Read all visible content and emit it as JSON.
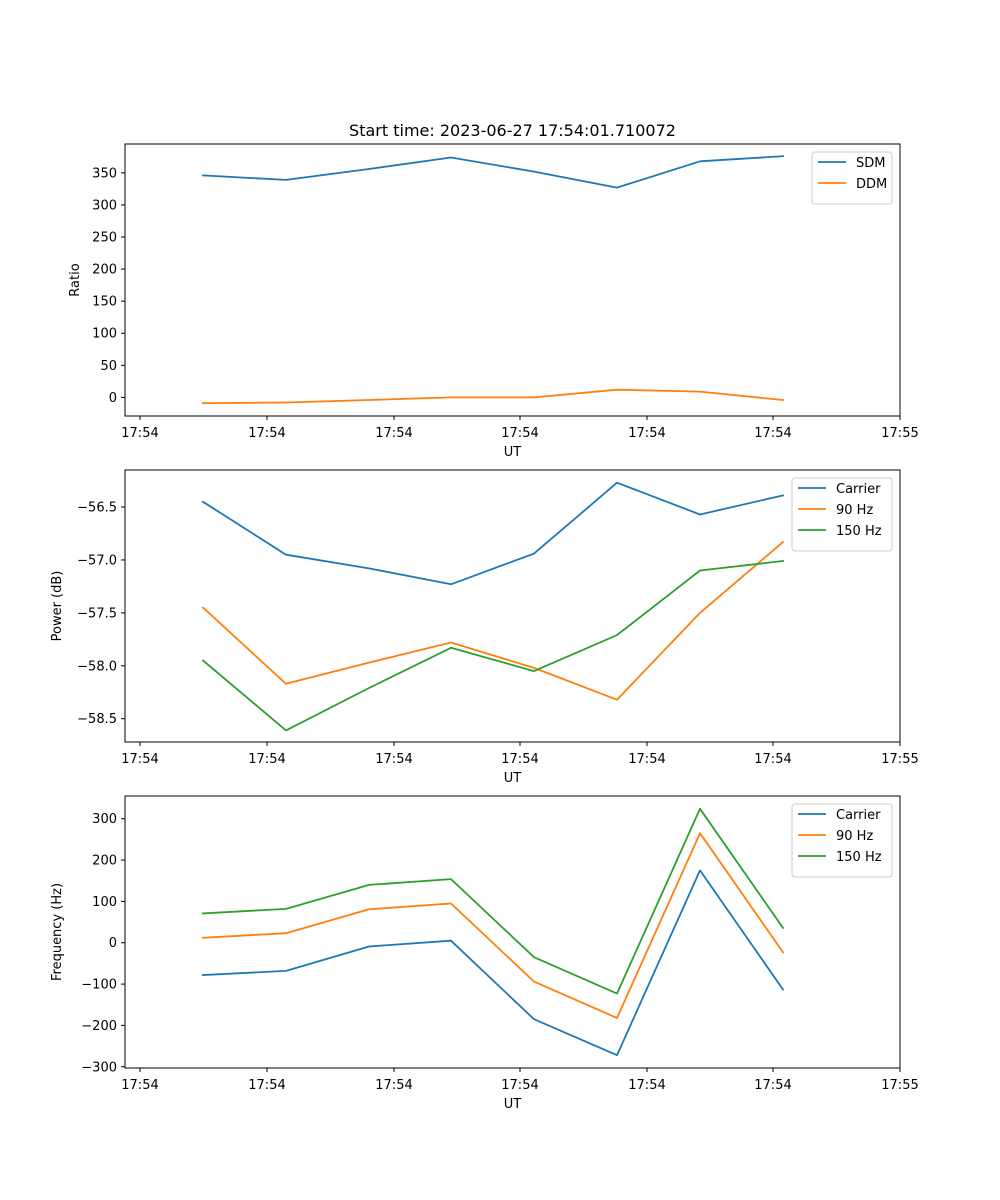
{
  "figure_title": "Start time: 2023-06-27 17:54:01.710072",
  "chart_data": [
    {
      "type": "line",
      "title": "Start time: 2023-06-27 17:54:01.710072",
      "xlabel": "UT",
      "ylabel": "Ratio",
      "x_tick_labels": [
        "17:54",
        "17:54",
        "17:54",
        "17:54",
        "17:54",
        "17:54",
        "17:55"
      ],
      "y_ticks": [
        0,
        50,
        100,
        150,
        200,
        250,
        300,
        350
      ],
      "ylim": [
        -29,
        395
      ],
      "x": [
        1,
        2,
        3,
        4,
        5,
        6,
        7,
        8
      ],
      "series": [
        {
          "name": "SDM",
          "color": "#1f77b4",
          "values": [
            346,
            339,
            356,
            374,
            352,
            327,
            368,
            376
          ]
        },
        {
          "name": "DDM",
          "color": "#ff7f0e",
          "values": [
            -9,
            -8,
            -4,
            0,
            0,
            12,
            9,
            -4
          ]
        }
      ],
      "legend": "top-right",
      "grid": false
    },
    {
      "type": "line",
      "title": "",
      "xlabel": "UT",
      "ylabel": "Power (dB)",
      "x_tick_labels": [
        "17:54",
        "17:54",
        "17:54",
        "17:54",
        "17:54",
        "17:54",
        "17:55"
      ],
      "y_ticks": [
        -58.5,
        -58.0,
        -57.5,
        -57.0,
        -56.5
      ],
      "y_tick_labels": [
        "−58.5",
        "−58.0",
        "−57.5",
        "−57.0",
        "−56.5"
      ],
      "ylim": [
        -58.72,
        -56.15
      ],
      "x": [
        1,
        2,
        3,
        4,
        5,
        6,
        7,
        8
      ],
      "series": [
        {
          "name": "Carrier",
          "color": "#1f77b4",
          "values": [
            -56.45,
            -56.95,
            -57.08,
            -57.23,
            -56.94,
            -56.27,
            -56.57,
            -56.39
          ]
        },
        {
          "name": "90 Hz",
          "color": "#ff7f0e",
          "values": [
            -57.45,
            -58.17,
            -57.97,
            -57.78,
            -58.02,
            -58.32,
            -57.5,
            -56.83
          ]
        },
        {
          "name": "150 Hz",
          "color": "#2ca02c",
          "values": [
            -57.95,
            -58.61,
            -58.21,
            -57.83,
            -58.05,
            -57.71,
            -57.1,
            -57.01
          ]
        }
      ],
      "legend": "top-right",
      "grid": false
    },
    {
      "type": "line",
      "title": "",
      "xlabel": "UT",
      "ylabel": "Frequency (Hz)",
      "x_tick_labels": [
        "17:54",
        "17:54",
        "17:54",
        "17:54",
        "17:54",
        "17:54",
        "17:55"
      ],
      "y_ticks": [
        -300,
        -200,
        -100,
        0,
        100,
        200,
        300
      ],
      "y_tick_labels": [
        "−300",
        "−200",
        "−100",
        "0",
        "100",
        "200",
        "300"
      ],
      "ylim": [
        -303,
        355
      ],
      "x": [
        1,
        2,
        3,
        4,
        5,
        6,
        7,
        8
      ],
      "series": [
        {
          "name": "Carrier",
          "color": "#1f77b4",
          "values": [
            -78,
            -68,
            -9,
            5,
            -185,
            -272,
            175,
            -113
          ]
        },
        {
          "name": "90 Hz",
          "color": "#ff7f0e",
          "values": [
            12,
            23,
            81,
            95,
            -94,
            -182,
            265,
            -23
          ]
        },
        {
          "name": "150 Hz",
          "color": "#2ca02c",
          "values": [
            71,
            82,
            140,
            154,
            -35,
            -123,
            324,
            36
          ]
        }
      ],
      "legend": "top-right",
      "grid": false
    }
  ]
}
